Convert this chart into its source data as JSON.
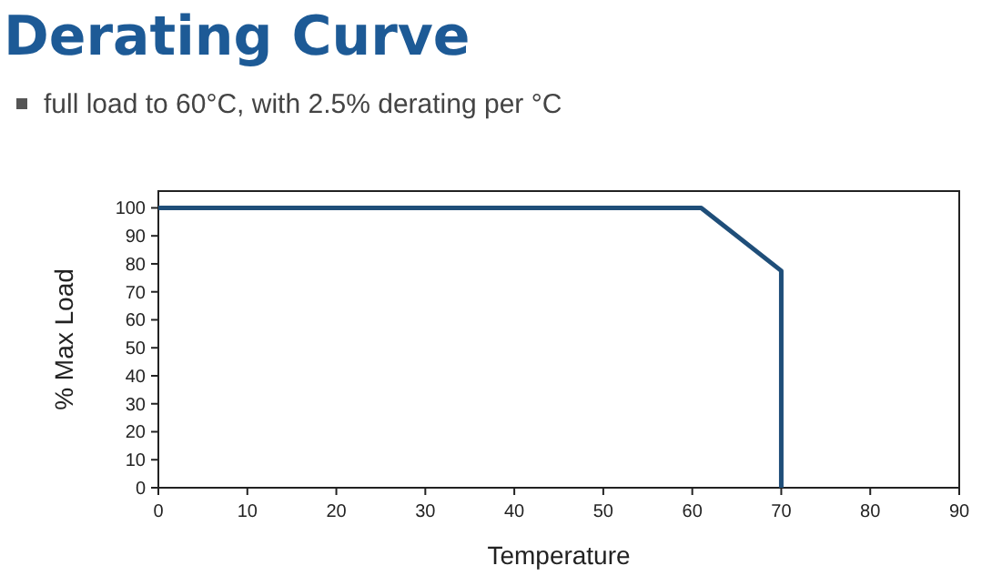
{
  "chart_data": {
    "type": "line",
    "title": "Derating Curve",
    "subtitle": "full load to 60°C, with 2.5% derating per °C",
    "xlabel": "Temperature",
    "ylabel": "% Max Load",
    "series": [
      {
        "color": "#1f4e79",
        "x": [
          0,
          61,
          70,
          70
        ],
        "values": [
          100,
          100,
          77.5,
          0
        ]
      }
    ],
    "xlim": [
      0,
      90
    ],
    "xticks": [
      0,
      10,
      20,
      30,
      40,
      50,
      60,
      70,
      80,
      90
    ],
    "ylim": [
      0,
      106
    ],
    "yticks": [
      0,
      10,
      20,
      30,
      40,
      50,
      60,
      70,
      80,
      90,
      100
    ],
    "grid": false,
    "marker": "none",
    "line_style": "solid"
  }
}
